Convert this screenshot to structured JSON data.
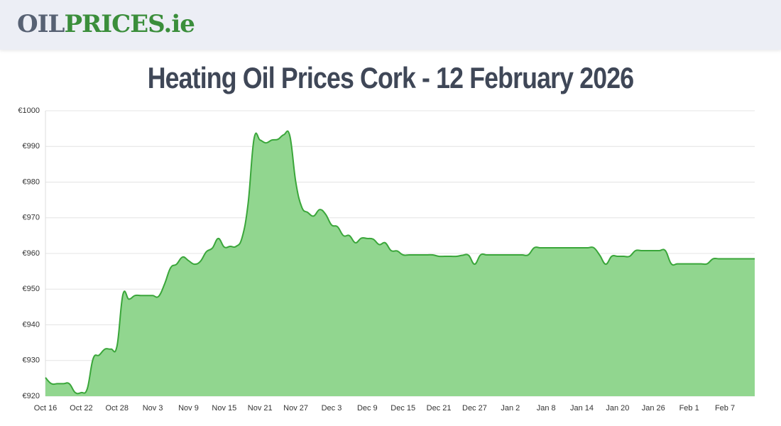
{
  "header": {
    "logo": [
      "OIL",
      "PRICES",
      ".ie"
    ]
  },
  "chart_data": {
    "type": "area",
    "title": "Heating Oil Prices Cork - 12 February 2026",
    "categories": [
      "Oct 16",
      null,
      null,
      null,
      null,
      null,
      "Oct 22",
      null,
      null,
      null,
      null,
      null,
      "Oct 28",
      null,
      null,
      null,
      null,
      null,
      "Nov 3",
      null,
      null,
      null,
      null,
      null,
      "Nov 9",
      null,
      null,
      null,
      null,
      null,
      "Nov 15",
      null,
      null,
      null,
      null,
      null,
      "Nov 21",
      null,
      null,
      null,
      null,
      null,
      "Nov 27",
      null,
      null,
      null,
      null,
      null,
      "Dec 3",
      null,
      null,
      null,
      null,
      null,
      "Dec 9",
      null,
      null,
      null,
      null,
      null,
      "Dec 15",
      null,
      null,
      null,
      null,
      null,
      "Dec 21",
      null,
      null,
      null,
      null,
      null,
      "Dec 27",
      null,
      null,
      null,
      null,
      null,
      "Jan 2",
      null,
      null,
      null,
      null,
      null,
      "Jan 8",
      null,
      null,
      null,
      null,
      null,
      "Jan 14",
      null,
      null,
      null,
      null,
      null,
      "Jan 20",
      null,
      null,
      null,
      null,
      null,
      "Jan 26",
      null,
      null,
      null,
      null,
      null,
      "Feb 1",
      null,
      null,
      null,
      null,
      null,
      "Feb 7",
      null,
      null,
      null,
      null,
      null
    ],
    "values": [
      925.2,
      923.5,
      923.5,
      923.5,
      923.5,
      921,
      921,
      922,
      930.5,
      931.5,
      933.2,
      933.2,
      934,
      948.5,
      947.2,
      948.2,
      948.2,
      948.2,
      948.2,
      948,
      951.5,
      956,
      957,
      959,
      958,
      957,
      957.8,
      960.5,
      961.5,
      964.2,
      961.8,
      962,
      962,
      964.5,
      974,
      992.2,
      991.8,
      991,
      991.8,
      992,
      993.3,
      993,
      980,
      973,
      971.5,
      970.5,
      972.3,
      971,
      968,
      967.5,
      965,
      965,
      963,
      964.3,
      964.2,
      964,
      962.5,
      963,
      960.8,
      960.7,
      959.6,
      959.6,
      959.6,
      959.6,
      959.6,
      959.6,
      959.2,
      959.2,
      959.2,
      959.2,
      959.5,
      959.5,
      957,
      959.6,
      959.6,
      959.6,
      959.6,
      959.6,
      959.6,
      959.6,
      959.6,
      959.6,
      961.6,
      961.6,
      961.6,
      961.6,
      961.6,
      961.6,
      961.6,
      961.6,
      961.6,
      961.6,
      961.6,
      959.5,
      957,
      959.2,
      959.2,
      959.2,
      959.2,
      960.8,
      960.8,
      960.8,
      960.8,
      960.8,
      960.8,
      957.1,
      957.1,
      957.1,
      957.1,
      957.1,
      957.1,
      957.1,
      958.5,
      958.5,
      958.5,
      958.5,
      958.5,
      958.5,
      958.5,
      958.5
    ],
    "color": "#3aa63a",
    "fill": "#91d68f",
    "ylim": [
      920,
      1000
    ],
    "yticks": [
      {
        "value": 920,
        "label": "€920"
      },
      {
        "value": 930,
        "label": "€930"
      },
      {
        "value": 940,
        "label": "€940"
      },
      {
        "value": 950,
        "label": "€950"
      },
      {
        "value": 960,
        "label": "€960"
      },
      {
        "value": 970,
        "label": "€970"
      },
      {
        "value": 980,
        "label": "€980"
      },
      {
        "value": 990,
        "label": "€990"
      },
      {
        "value": 1000,
        "label": "€1000"
      }
    ],
    "grid": true
  }
}
